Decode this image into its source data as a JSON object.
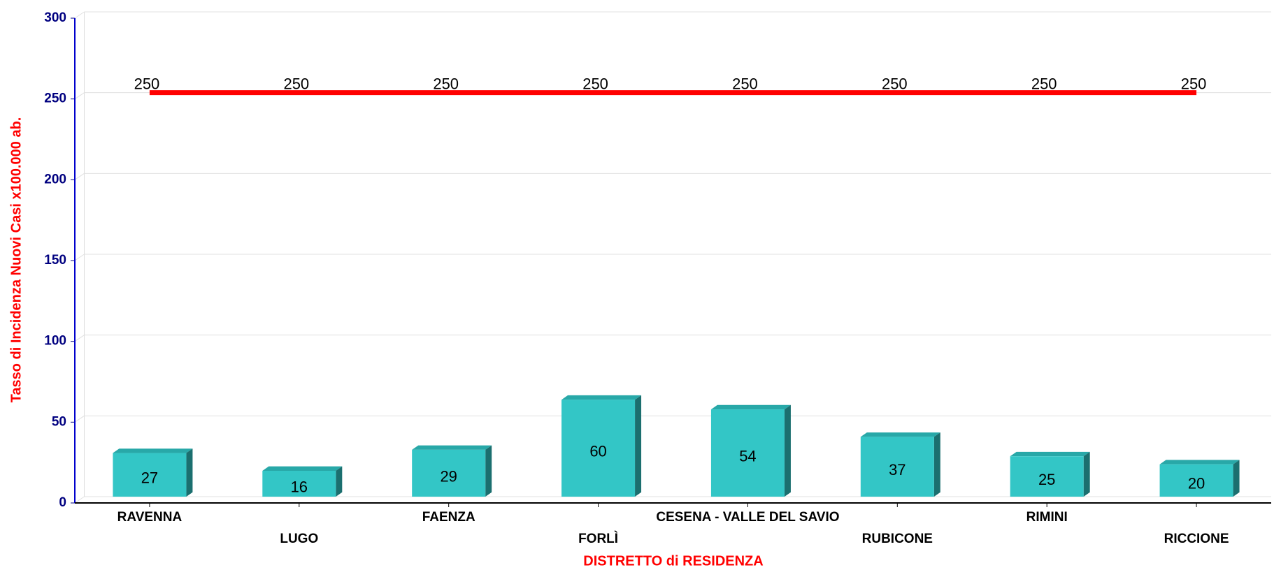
{
  "chart_data": {
    "type": "bar",
    "y_axis_label": "Tasso di Incidenza Nuovi Casi x100.000 ab.",
    "x_axis_label": "DISTRETTO di RESIDENZA",
    "categories": [
      "RAVENNA",
      "LUGO",
      "FAENZA",
      "FORLÌ",
      "CESENA - VALLE DEL SAVIO",
      "RUBICONE",
      "RIMINI",
      "RICCIONE"
    ],
    "series": [
      {
        "type": "bar",
        "color": "#33c6c6",
        "values": [
          27,
          16,
          29,
          60,
          54,
          37,
          25,
          20
        ]
      },
      {
        "type": "line",
        "color": "#ff0000",
        "values": [
          250,
          250,
          250,
          250,
          250,
          250,
          250,
          250
        ]
      }
    ],
    "ylim": [
      0,
      300
    ],
    "yticks": [
      0,
      50,
      100,
      150,
      200,
      250,
      300
    ],
    "grid": true
  }
}
